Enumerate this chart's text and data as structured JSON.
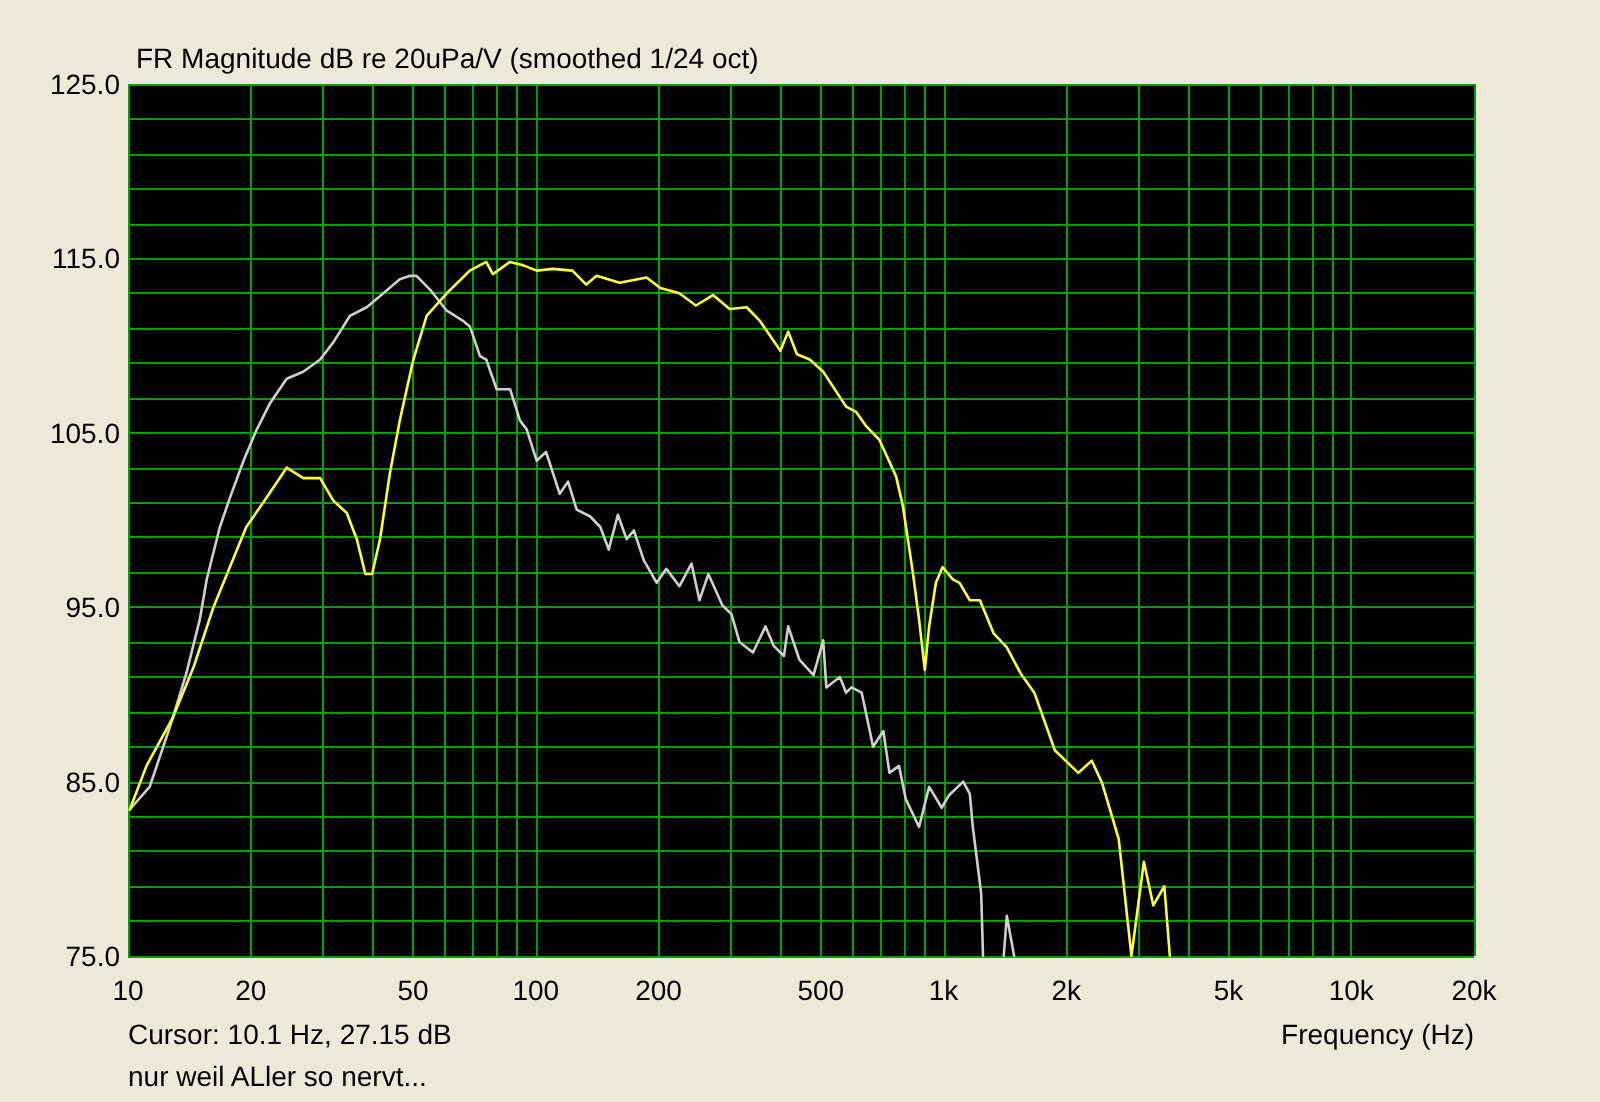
{
  "chart_data": {
    "type": "line",
    "title": "FR Magnitude dB re 20uPa/V (smoothed 1/24 oct)",
    "xlabel": "Frequency (Hz)",
    "annotations": [
      "Cursor: 10.1 Hz, 27.15 dB",
      "nur weil ALler so nervt..."
    ],
    "log": "x",
    "xlim": [
      10,
      20000
    ],
    "ylim": [
      75,
      125
    ],
    "xticks": [
      10,
      20,
      {
        "value": 30,
        "label": null
      },
      {
        "value": 40,
        "label": null
      },
      50,
      {
        "value": 60,
        "label": null
      },
      {
        "value": 70,
        "label": null
      },
      {
        "value": 80,
        "label": null
      },
      {
        "value": 90,
        "label": null
      },
      100,
      200,
      {
        "value": 300,
        "label": null
      },
      {
        "value": 400,
        "label": null
      },
      500,
      {
        "value": 600,
        "label": null
      },
      {
        "value": 700,
        "label": null
      },
      {
        "value": 800,
        "label": null
      },
      {
        "value": 900,
        "label": null
      },
      {
        "value": 1000,
        "label": "1k"
      },
      {
        "value": 2000,
        "label": "2k"
      },
      {
        "value": 3000,
        "label": null
      },
      {
        "value": 4000,
        "label": null
      },
      {
        "value": 5000,
        "label": "5k"
      },
      {
        "value": 6000,
        "label": null
      },
      {
        "value": 7000,
        "label": null
      },
      {
        "value": 8000,
        "label": null
      },
      {
        "value": 9000,
        "label": null
      },
      {
        "value": 10000,
        "label": "10k"
      },
      {
        "value": 20000,
        "label": "20k"
      }
    ],
    "yticks": [
      {
        "value": 75,
        "label": "75.0"
      },
      {
        "value": 77,
        "label": null
      },
      {
        "value": 79,
        "label": null
      },
      {
        "value": 81,
        "label": null
      },
      {
        "value": 83,
        "label": null
      },
      {
        "value": 85,
        "label": "85.0"
      },
      {
        "value": 87,
        "label": null
      },
      {
        "value": 89,
        "label": null
      },
      {
        "value": 91,
        "label": null
      },
      {
        "value": 93,
        "label": null
      },
      {
        "value": 95,
        "label": "95.0"
      },
      {
        "value": 97,
        "label": null
      },
      {
        "value": 99,
        "label": null
      },
      {
        "value": 101,
        "label": null
      },
      {
        "value": 103,
        "label": null
      },
      {
        "value": 105,
        "label": "105.0"
      },
      {
        "value": 107,
        "label": null
      },
      {
        "value": 109,
        "label": null
      },
      {
        "value": 111,
        "label": null
      },
      {
        "value": 113,
        "label": null
      },
      {
        "value": 115,
        "label": "115.0"
      },
      {
        "value": 117,
        "label": null
      },
      {
        "value": 119,
        "label": null
      },
      {
        "value": 121,
        "label": null
      },
      {
        "value": 123,
        "label": null
      },
      {
        "value": 125,
        "label": "125.0"
      }
    ],
    "grid": true,
    "marker": "none",
    "line_style": "solid",
    "series": [
      {
        "color": "#d0d0d0",
        "x": [
          10.1,
          11.3,
          12.7,
          13.9,
          15.0,
          15.6,
          16.8,
          17.8,
          19.2,
          20.7,
          22.3,
          24.5,
          26.9,
          29.6,
          31.9,
          35.0,
          38.5,
          42.3,
          46.4,
          49.2,
          51.0,
          55.1,
          60.5,
          66.5,
          68.9,
          73.0,
          75.6,
          80.2,
          86.5,
          91.5,
          95,
          100.5,
          106,
          114.5,
          120,
          126,
          136,
          144,
          151,
          159,
          167,
          174,
          184,
          198,
          209,
          225,
          241,
          252,
          265,
          287,
          302,
          316,
          341,
          366,
          383,
          406,
          416,
          443,
          480,
          507,
          516,
          557,
          577,
          595,
          630,
          672,
          712,
          737,
          778,
          808,
          871,
          922,
          990,
          1030,
          1118,
          1160,
          1180,
          1237,
          1250,
          1330,
          1405,
          1430,
          1490
        ],
        "values": [
          83.4,
          84.7,
          88.2,
          91.2,
          94.3,
          96.6,
          99.6,
          101.3,
          103.4,
          105.2,
          106.7,
          108.1,
          108.5,
          109.2,
          110.2,
          111.7,
          112.2,
          113.0,
          113.8,
          114.0,
          114.0,
          113.2,
          112.0,
          111.4,
          111.1,
          109.4,
          109.2,
          107.5,
          107.5,
          105.7,
          105.2,
          103.4,
          103.9,
          101.5,
          102.2,
          100.6,
          100.2,
          99.6,
          98.3,
          100.3,
          98.9,
          99.4,
          97.7,
          96.4,
          97.2,
          96.2,
          97.5,
          95.4,
          96.9,
          95.1,
          94.6,
          93.0,
          92.4,
          93.9,
          92.8,
          92.2,
          93.9,
          92.0,
          91.1,
          93.1,
          90.4,
          91.0,
          90.1,
          90.4,
          90.1,
          87.0,
          87.9,
          85.5,
          85.9,
          84.0,
          82.4,
          84.7,
          83.5,
          84.2,
          85.0,
          84.3,
          82.4,
          78.6,
          75.0,
          null,
          75.0,
          77.3,
          75.0
        ]
      },
      {
        "color": "#ffff40",
        "x": [
          10.1,
          11.1,
          12.9,
          14.5,
          16.2,
          19.5,
          21.9,
          24.5,
          26.9,
          29.6,
          31.9,
          34.4,
          36.4,
          38.2,
          39.7,
          41.5,
          43.9,
          46.4,
          50.1,
          54.0,
          60.5,
          68.9,
          75.6,
          78.5,
          86.5,
          93.3,
          100.5,
          110,
          123,
          133,
          141,
          160.5,
          187,
          202,
          225,
          247,
          272,
          299,
          329,
          355,
          398,
          416,
          437,
          470,
          507,
          577,
          610,
          645,
          696,
          765,
          795,
          842,
          871,
          900,
          922,
          958,
          995,
          1054,
          1095,
          1160,
          1228,
          1327,
          1430,
          1546,
          1670,
          1875,
          2140,
          2310,
          2450,
          2690,
          2890,
          3100,
          3270,
          3480,
          3590
        ],
        "values": [
          83.4,
          85.9,
          88.7,
          91.6,
          95.0,
          99.6,
          101.3,
          103.0,
          102.4,
          102.4,
          101.1,
          100.4,
          98.9,
          96.9,
          96.9,
          98.9,
          102.7,
          105.7,
          109.2,
          111.7,
          113.0,
          114.3,
          114.8,
          114.1,
          114.8,
          114.6,
          114.3,
          114.4,
          114.3,
          113.5,
          114.0,
          113.6,
          113.9,
          113.3,
          113.0,
          112.3,
          112.9,
          112.1,
          112.2,
          111.4,
          109.7,
          110.8,
          109.5,
          109.2,
          108.5,
          106.5,
          106.2,
          105.4,
          104.6,
          102.5,
          100.8,
          96.9,
          94.3,
          91.4,
          93.9,
          96.4,
          97.3,
          96.6,
          96.4,
          95.4,
          95.4,
          93.5,
          92.7,
          91.2,
          90.1,
          86.8,
          85.5,
          86.2,
          84.9,
          81.7,
          75.0,
          80.4,
          77.9,
          79.0,
          75.0
        ]
      }
    ]
  }
}
